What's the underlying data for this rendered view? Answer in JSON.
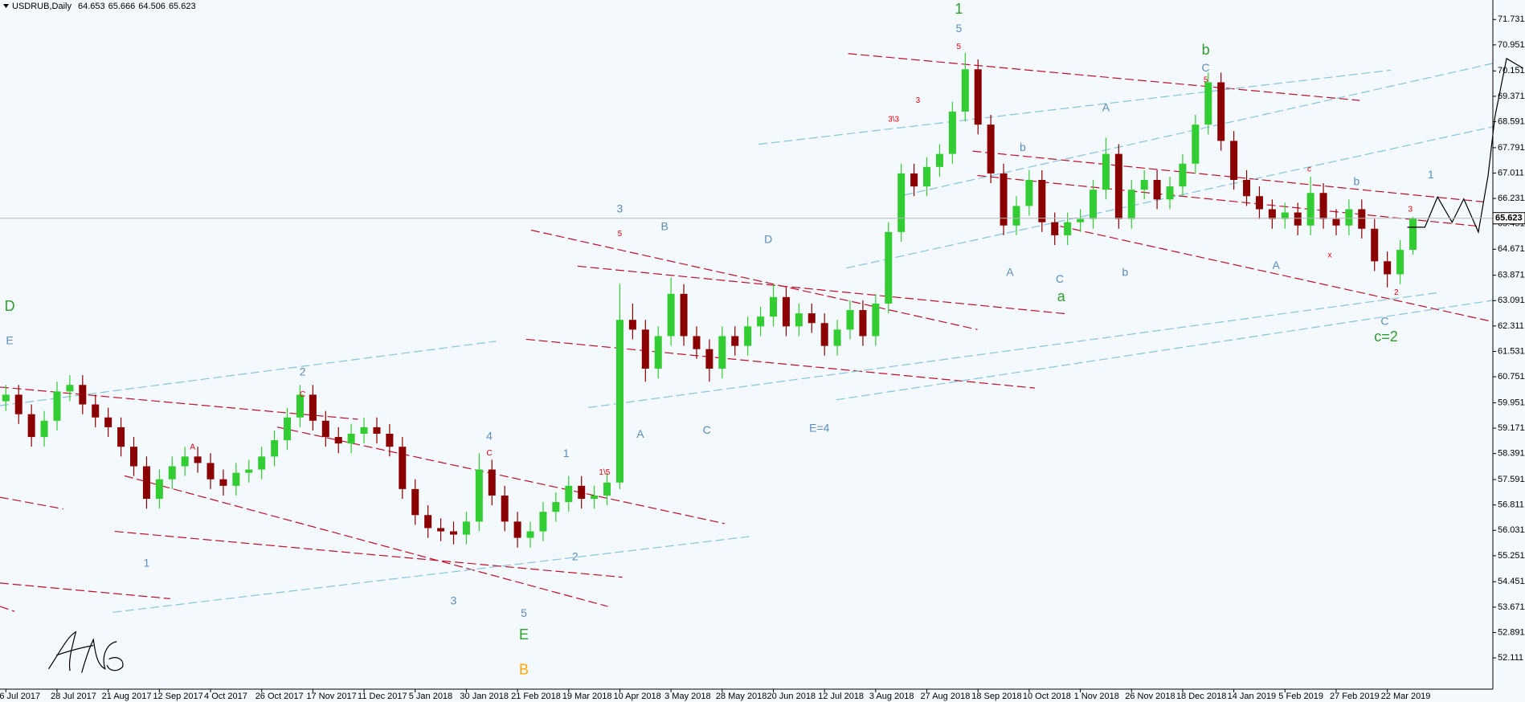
{
  "chart_data": {
    "type": "candlestick",
    "title": "USDRUB,Daily",
    "up_color": "#32cd32",
    "down_color": "#8b0000",
    "categories": [
      "6 Jul 2017",
      null,
      null,
      null,
      "28 Jul 2017",
      null,
      null,
      null,
      "21 Aug 2017",
      null,
      null,
      null,
      "12 Sep 2017",
      null,
      null,
      null,
      "4 Oct 2017",
      null,
      null,
      null,
      "26 Oct 2017",
      null,
      null,
      null,
      "17 Nov 2017",
      null,
      null,
      null,
      "11 Dec 2017",
      null,
      null,
      null,
      "5 Jan 2018",
      null,
      null,
      null,
      "30 Jan 2018",
      null,
      null,
      null,
      "21 Feb 2018",
      null,
      null,
      null,
      "19 Mar 2018",
      null,
      null,
      null,
      "10 Apr 2018",
      null,
      null,
      null,
      "3 May 2018",
      null,
      null,
      null,
      "28 May 2018",
      null,
      null,
      null,
      "20 Jun 2018",
      null,
      null,
      null,
      "12 Jul 2018",
      null,
      null,
      null,
      "3 Aug 2018",
      null,
      null,
      null,
      "27 Aug 2018",
      null,
      null,
      null,
      "18 Sep 2018",
      null,
      null,
      null,
      "10 Oct 2018",
      null,
      null,
      null,
      "1 Nov 2018",
      null,
      null,
      null,
      "26 Nov 2018",
      null,
      null,
      null,
      "18 Dec 2018",
      null,
      null,
      null,
      "14 Jan 2019",
      null,
      null,
      null,
      "5 Feb 2019",
      null,
      null,
      null,
      "27 Feb 2019",
      null,
      null,
      null,
      "22 Mar 2019",
      null,
      null
    ],
    "open": [
      60.0,
      60.2,
      59.6,
      58.9,
      59.4,
      60.3,
      60.5,
      59.9,
      59.5,
      59.2,
      58.6,
      58.0,
      57.0,
      57.6,
      58.0,
      58.3,
      58.1,
      57.6,
      57.4,
      57.8,
      57.9,
      58.3,
      58.8,
      59.5,
      60.2,
      59.4,
      58.9,
      58.7,
      59.0,
      59.2,
      59.0,
      58.6,
      57.3,
      56.5,
      56.1,
      56.0,
      55.9,
      56.3,
      57.9,
      57.1,
      56.3,
      55.8,
      56.0,
      56.6,
      56.9,
      57.4,
      57.0,
      57.1,
      57.5,
      62.5,
      62.2,
      61.0,
      62.0,
      63.3,
      62.0,
      61.6,
      61.0,
      62.0,
      61.7,
      62.3,
      62.6,
      63.2,
      62.3,
      62.7,
      62.4,
      61.7,
      62.2,
      62.8,
      62.0,
      63.0,
      65.2,
      67.0,
      66.6,
      67.2,
      67.6,
      68.9,
      70.2,
      68.5,
      67.0,
      65.4,
      66.0,
      66.8,
      65.5,
      65.1,
      65.5,
      65.6,
      66.5,
      67.6,
      65.6,
      66.5,
      66.8,
      66.2,
      66.6,
      67.3,
      68.5,
      69.8,
      68.0,
      66.8,
      66.3,
      65.9,
      65.6,
      65.8,
      65.4,
      66.4,
      65.6,
      65.4,
      65.9,
      65.3,
      64.3,
      63.9,
      64.653
    ],
    "high": [
      60.5,
      60.5,
      59.9,
      59.7,
      60.6,
      60.8,
      60.8,
      60.2,
      59.8,
      59.5,
      58.9,
      58.3,
      57.9,
      58.3,
      58.6,
      58.6,
      58.4,
      57.9,
      58.1,
      58.2,
      58.6,
      59.1,
      59.8,
      60.5,
      60.5,
      59.7,
      59.2,
      59.3,
      59.5,
      59.5,
      59.3,
      58.9,
      57.6,
      56.8,
      56.4,
      56.3,
      56.6,
      58.4,
      58.2,
      57.4,
      56.6,
      56.3,
      56.9,
      57.2,
      57.7,
      57.7,
      57.4,
      57.8,
      63.6,
      63.0,
      62.5,
      62.3,
      63.8,
      63.6,
      62.3,
      61.9,
      62.3,
      62.3,
      62.6,
      62.9,
      63.6,
      63.5,
      63.0,
      63.0,
      62.7,
      62.5,
      63.1,
      63.1,
      63.3,
      65.5,
      67.3,
      67.3,
      67.5,
      67.9,
      69.2,
      70.7,
      70.5,
      68.8,
      67.3,
      66.3,
      67.1,
      67.1,
      65.8,
      65.8,
      65.9,
      66.8,
      68.1,
      67.9,
      66.8,
      67.1,
      67.1,
      66.9,
      67.6,
      68.8,
      70.1,
      70.1,
      68.3,
      67.1,
      66.6,
      66.2,
      66.1,
      66.1,
      66.9,
      66.7,
      65.9,
      66.2,
      66.2,
      65.6,
      64.6,
      64.95,
      65.666
    ],
    "low": [
      59.7,
      59.3,
      58.6,
      58.6,
      59.1,
      60.0,
      59.6,
      59.2,
      58.9,
      58.3,
      57.7,
      56.7,
      56.7,
      57.3,
      57.7,
      57.8,
      57.3,
      57.1,
      57.1,
      57.5,
      57.6,
      58.0,
      58.5,
      59.2,
      59.1,
      58.6,
      58.4,
      58.4,
      58.7,
      58.7,
      58.3,
      57.0,
      56.2,
      55.8,
      55.7,
      55.6,
      55.6,
      56.0,
      56.8,
      56.0,
      55.5,
      55.5,
      55.7,
      56.3,
      56.6,
      56.7,
      56.7,
      56.8,
      57.3,
      61.9,
      60.6,
      60.7,
      61.7,
      61.7,
      61.3,
      60.6,
      60.7,
      61.4,
      61.4,
      62.0,
      62.3,
      62.0,
      62.0,
      62.1,
      61.4,
      61.4,
      61.9,
      61.7,
      61.7,
      62.7,
      64.9,
      66.3,
      66.3,
      66.9,
      67.3,
      68.6,
      68.2,
      66.7,
      65.1,
      65.1,
      65.7,
      65.2,
      64.8,
      64.8,
      65.2,
      65.3,
      66.2,
      65.3,
      65.3,
      66.2,
      65.9,
      65.9,
      66.3,
      67.0,
      68.2,
      67.7,
      66.5,
      66.0,
      65.6,
      65.3,
      65.3,
      65.1,
      65.1,
      65.3,
      65.1,
      65.1,
      65.0,
      64.0,
      63.5,
      63.6,
      64.506
    ],
    "close": [
      60.2,
      59.6,
      58.9,
      59.4,
      60.3,
      60.5,
      59.9,
      59.5,
      59.2,
      58.6,
      58.0,
      57.0,
      57.6,
      58.0,
      58.3,
      58.1,
      57.6,
      57.4,
      57.8,
      57.9,
      58.3,
      58.8,
      59.5,
      60.2,
      59.4,
      58.9,
      58.7,
      59.0,
      59.2,
      59.0,
      58.6,
      57.3,
      56.5,
      56.1,
      56.0,
      55.9,
      56.3,
      57.9,
      57.1,
      56.3,
      55.8,
      56.0,
      56.6,
      56.9,
      57.4,
      57.0,
      57.1,
      57.5,
      62.5,
      62.2,
      61.0,
      62.0,
      63.3,
      62.0,
      61.6,
      61.0,
      62.0,
      61.7,
      62.3,
      62.6,
      63.2,
      62.3,
      62.7,
      62.4,
      61.7,
      62.2,
      62.8,
      62.0,
      63.0,
      65.2,
      67.0,
      66.6,
      67.2,
      67.6,
      68.9,
      70.2,
      68.5,
      67.0,
      65.4,
      66.0,
      66.8,
      65.5,
      65.1,
      65.5,
      65.6,
      66.5,
      67.6,
      65.6,
      66.5,
      66.8,
      66.2,
      66.6,
      67.3,
      68.5,
      69.8,
      68.0,
      66.8,
      66.3,
      65.9,
      65.6,
      65.8,
      65.4,
      66.4,
      65.6,
      65.4,
      65.9,
      65.3,
      64.3,
      63.9,
      64.65,
      65.623
    ],
    "ylim": [
      51.15,
      72.33
    ],
    "yticks": [
      52.111,
      52.891,
      53.671,
      54.451,
      55.251,
      56.031,
      56.811,
      57.591,
      58.391,
      59.171,
      59.951,
      60.751,
      61.531,
      62.311,
      63.091,
      63.871,
      64.671,
      65.451,
      66.231,
      67.011,
      67.791,
      68.591,
      69.371,
      70.151,
      70.951,
      71.731
    ],
    "grid": false,
    "annotations": [
      {
        "text": "1",
        "x": 74.5,
        "y": 72.03,
        "color": "#2e9e2e"
      },
      {
        "text": "5",
        "x": 74.5,
        "y": 71.43,
        "color": "#5b8db8"
      },
      {
        "text": "5",
        "x": 74.5,
        "y": 70.89,
        "color": "#e8000b"
      },
      {
        "text": "3",
        "x": 71.3,
        "y": 69.24,
        "color": "#e8000b"
      },
      {
        "text": "3\\3",
        "x": 69.4,
        "y": 68.65,
        "color": "#e8000b"
      },
      {
        "text": "b",
        "x": 93.8,
        "y": 70.77,
        "color": "#2e9e2e"
      },
      {
        "text": "C",
        "x": 93.8,
        "y": 70.23,
        "color": "#5b8db8"
      },
      {
        "text": "5",
        "x": 93.8,
        "y": 69.87,
        "color": "#e8000b"
      },
      {
        "text": "A",
        "x": 86.0,
        "y": 69.0,
        "color": "#5b8db8"
      },
      {
        "text": "b",
        "x": 79.5,
        "y": 67.78,
        "color": "#5b8db8"
      },
      {
        "text": "A",
        "x": 78.5,
        "y": 63.94,
        "color": "#5b8db8"
      },
      {
        "text": "C",
        "x": 82.4,
        "y": 63.73,
        "color": "#5b8db8"
      },
      {
        "text": "a",
        "x": 82.5,
        "y": 63.19,
        "color": "#2e9e2e"
      },
      {
        "text": "b",
        "x": 87.5,
        "y": 63.94,
        "color": "#5b8db8"
      },
      {
        "text": "b",
        "x": 105.6,
        "y": 66.73,
        "color": "#5b8db8"
      },
      {
        "text": "1",
        "x": 111.4,
        "y": 66.94,
        "color": "#5b8db8"
      },
      {
        "text": "A",
        "x": 99.3,
        "y": 64.15,
        "color": "#5b8db8"
      },
      {
        "text": "c",
        "x": 101.9,
        "y": 67.12,
        "color": "#e8000b"
      },
      {
        "text": "x",
        "x": 103.5,
        "y": 64.48,
        "color": "#e8000b"
      },
      {
        "text": "2",
        "x": 108.7,
        "y": 63.34,
        "color": "#e8000b"
      },
      {
        "text": "3",
        "x": 109.8,
        "y": 65.89,
        "color": "#e8000b"
      },
      {
        "text": "C",
        "x": 107.8,
        "y": 62.44,
        "color": "#5b8db8"
      },
      {
        "text": "c=2",
        "x": 107.9,
        "y": 61.96,
        "color": "#2e9e2e"
      },
      {
        "text": "D",
        "x": 0.3,
        "y": 62.89,
        "color": "#2e9e2e"
      },
      {
        "text": "E",
        "x": 0.3,
        "y": 61.84,
        "color": "#5b8db8"
      },
      {
        "text": "2",
        "x": 23.2,
        "y": 60.88,
        "color": "#5b8db8"
      },
      {
        "text": "C",
        "x": 23.2,
        "y": 60.2,
        "color": "#e8000b"
      },
      {
        "text": "A",
        "x": 14.6,
        "y": 58.58,
        "color": "#e8000b"
      },
      {
        "text": "1",
        "x": 11.0,
        "y": 55.01,
        "color": "#5b8db8"
      },
      {
        "text": "3",
        "x": 48.0,
        "y": 65.89,
        "color": "#5b8db8"
      },
      {
        "text": "5",
        "x": 48.0,
        "y": 65.14,
        "color": "#e8000b"
      },
      {
        "text": "B",
        "x": 51.5,
        "y": 65.35,
        "color": "#5b8db8"
      },
      {
        "text": "D",
        "x": 59.6,
        "y": 64.96,
        "color": "#5b8db8"
      },
      {
        "text": "A",
        "x": 49.6,
        "y": 58.97,
        "color": "#5b8db8"
      },
      {
        "text": "C",
        "x": 54.8,
        "y": 59.09,
        "color": "#5b8db8"
      },
      {
        "text": "E=4",
        "x": 63.6,
        "y": 59.15,
        "color": "#5b8db8"
      },
      {
        "text": "4",
        "x": 37.8,
        "y": 58.91,
        "color": "#5b8db8"
      },
      {
        "text": "C",
        "x": 37.8,
        "y": 58.4,
        "color": "#e8000b"
      },
      {
        "text": "1",
        "x": 43.8,
        "y": 58.37,
        "color": "#5b8db8"
      },
      {
        "text": "1\\5",
        "x": 46.8,
        "y": 57.8,
        "color": "#e8000b"
      },
      {
        "text": "2",
        "x": 44.5,
        "y": 55.2,
        "color": "#5b8db8"
      },
      {
        "text": "3",
        "x": 35.0,
        "y": 53.85,
        "color": "#5b8db8"
      },
      {
        "text": "5",
        "x": 40.5,
        "y": 53.46,
        "color": "#5b8db8"
      },
      {
        "text": "E",
        "x": 40.5,
        "y": 52.8,
        "color": "#2e9e2e"
      },
      {
        "text": "B",
        "x": 40.5,
        "y": 51.72,
        "color": "#ffa500"
      }
    ]
  }
}
